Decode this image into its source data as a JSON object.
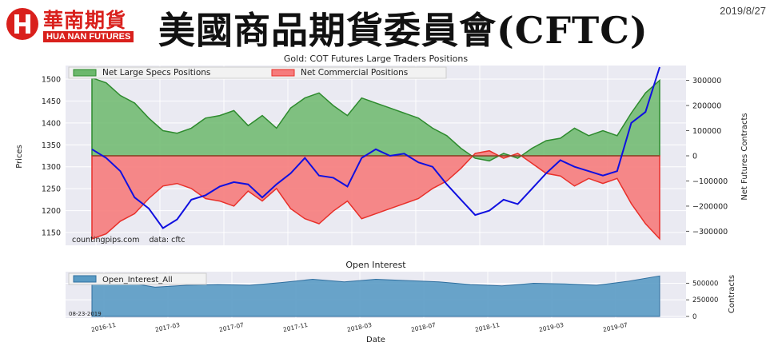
{
  "header": {
    "logo_cn": "華南期貨",
    "logo_en": "HUA NAN FUTURES",
    "title": "美國商品期貨委員會(CFTC)",
    "date": "2019/8/27"
  },
  "chart_data": [
    {
      "type": "line",
      "title": "Gold: COT Futures Large Traders Positions",
      "xlabel": "",
      "ylabel": "Prices",
      "ylabel_right": "Net Futures Contracts",
      "ylim": [
        1130,
        1520
      ],
      "y2lim": [
        -340000,
        340000
      ],
      "yticks": [
        "1500",
        "1450",
        "1400",
        "1350",
        "1300",
        "1250",
        "1200",
        "1150"
      ],
      "y2ticks": [
        "300000",
        "200000",
        "100000",
        "0",
        "−100000",
        "−200000",
        "−300000"
      ],
      "legend": [
        "Net Large Specs Positions",
        "Net Commercial Positions"
      ],
      "legend_position": "top-left",
      "annotation": "countingpips.com    data: cftc",
      "colors": {
        "specs": "#2e8b2e",
        "specs_fill": "#6cb86c",
        "commercial": "#e8302a",
        "commercial_fill": "#f67c7c",
        "price": "#1010e0",
        "price_overlap": "#6a1a8a"
      },
      "x": [
        "2016-08-23",
        "2016-09-13",
        "2016-10-04",
        "2016-10-25",
        "2016-11-15",
        "2016-12-06",
        "2017-01-03",
        "2017-02-07",
        "2017-03-07",
        "2017-04-04",
        "2017-05-02",
        "2017-05-30",
        "2017-06-27",
        "2017-07-25",
        "2017-08-22",
        "2017-09-19",
        "2017-10-17",
        "2017-11-14",
        "2017-12-12",
        "2018-01-09",
        "2018-02-06",
        "2018-03-06",
        "2018-04-03",
        "2018-05-01",
        "2018-05-29",
        "2018-06-26",
        "2018-07-24",
        "2018-08-21",
        "2018-09-18",
        "2018-10-16",
        "2018-11-13",
        "2018-12-11",
        "2019-01-08",
        "2019-02-05",
        "2019-03-05",
        "2019-04-02",
        "2019-04-30",
        "2019-05-28",
        "2019-06-25",
        "2019-07-23",
        "2019-08-20"
      ],
      "series": [
        {
          "name": "Net Large Specs Positions",
          "values": [
            310000,
            290000,
            240000,
            210000,
            150000,
            100000,
            90000,
            110000,
            150000,
            160000,
            180000,
            120000,
            160000,
            110000,
            190000,
            230000,
            250000,
            200000,
            160000,
            230000,
            210000,
            190000,
            170000,
            150000,
            110000,
            80000,
            30000,
            -10000,
            -20000,
            10000,
            -10000,
            30000,
            60000,
            70000,
            110000,
            80000,
            100000,
            80000,
            170000,
            250000,
            300000
          ]
        },
        {
          "name": "Net Commercial Positions",
          "values": [
            -330000,
            -310000,
            -260000,
            -230000,
            -170000,
            -120000,
            -110000,
            -130000,
            -170000,
            -180000,
            -200000,
            -140000,
            -180000,
            -130000,
            -210000,
            -250000,
            -270000,
            -220000,
            -180000,
            -250000,
            -230000,
            -210000,
            -190000,
            -170000,
            -130000,
            -100000,
            -50000,
            10000,
            20000,
            -10000,
            10000,
            -30000,
            -70000,
            -80000,
            -120000,
            -90000,
            -110000,
            -90000,
            -190000,
            -270000,
            -330000
          ]
        },
        {
          "name": "Prices",
          "values": [
            1340,
            1320,
            1290,
            1230,
            1205,
            1160,
            1180,
            1225,
            1235,
            1255,
            1265,
            1260,
            1230,
            1260,
            1285,
            1320,
            1280,
            1275,
            1255,
            1320,
            1340,
            1325,
            1330,
            1310,
            1300,
            1260,
            1225,
            1190,
            1200,
            1225,
            1215,
            1250,
            1285,
            1315,
            1300,
            1290,
            1280,
            1290,
            1400,
            1425,
            1530
          ]
        }
      ]
    },
    {
      "type": "area",
      "title": "Open Interest",
      "xlabel": "Date",
      "ylabel": "Contracts",
      "ylim": [
        0,
        650000
      ],
      "yticks": [
        "500000",
        "250000",
        "0"
      ],
      "legend": [
        "Open_Interest_All"
      ],
      "legend_position": "top-left",
      "annotation": "08-23-2019",
      "colors": {
        "fill": "#5a9bc4",
        "line": "#2f6f9f"
      },
      "xticks": [
        "2016-11",
        "2017-03",
        "2017-07",
        "2017-11",
        "2018-03",
        "2018-07",
        "2018-11",
        "2019-03",
        "2019-07"
      ],
      "x": [
        "2016-08",
        "2016-10",
        "2016-12",
        "2017-02",
        "2017-04",
        "2017-06",
        "2017-08",
        "2017-10",
        "2017-12",
        "2018-02",
        "2018-04",
        "2018-06",
        "2018-08",
        "2018-10",
        "2018-12",
        "2019-02",
        "2019-04",
        "2019-06",
        "2019-08"
      ],
      "series": [
        {
          "name": "Open_Interest_All",
          "values": [
            570000,
            520000,
            440000,
            470000,
            480000,
            470000,
            510000,
            560000,
            520000,
            560000,
            540000,
            520000,
            480000,
            460000,
            500000,
            490000,
            470000,
            530000,
            610000
          ]
        }
      ]
    }
  ]
}
